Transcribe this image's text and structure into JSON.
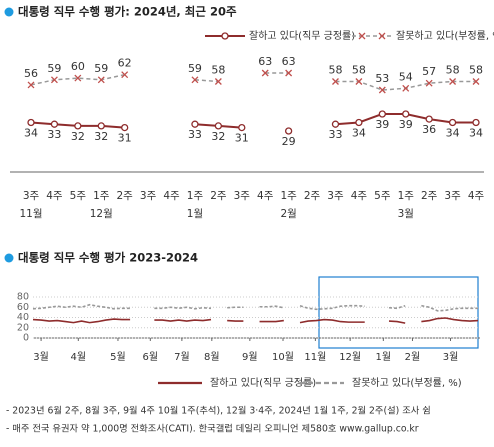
{
  "chart_data": [
    {
      "type": "line",
      "title": "대통령 직무 수행 평가: 2024년, 최근 20주",
      "categories": [
        "3주",
        "4주",
        "5주",
        "1주",
        "2주",
        "3주",
        "4주",
        "1주",
        "2주",
        "3주",
        "4주",
        "1주",
        "2주",
        "3주",
        "4주",
        "5주",
        "1주",
        "2주",
        "3주",
        "4주"
      ],
      "months": [
        "11월",
        null,
        null,
        "12월",
        null,
        null,
        null,
        "1월",
        null,
        null,
        null,
        "2월",
        null,
        null,
        null,
        null,
        "3월",
        null,
        null,
        null
      ],
      "series": [
        {
          "name": "잘하고 있다(직무 긍정률)",
          "color": "#8e2c2c",
          "values": [
            34,
            33,
            32,
            32,
            31,
            null,
            null,
            33,
            32,
            31,
            null,
            29,
            null,
            33,
            34,
            39,
            39,
            36,
            34,
            34
          ]
        },
        {
          "name": "잘못하고 있다(부정률, %)",
          "color": "#999999",
          "marker_color": "#c0504d",
          "values": [
            56,
            59,
            60,
            59,
            62,
            null,
            null,
            59,
            58,
            null,
            63,
            63,
            null,
            58,
            58,
            53,
            54,
            57,
            58,
            58
          ]
        }
      ]
    },
    {
      "type": "line",
      "title": "대통령 직무 수행 평가 2023-2024",
      "xlim": [
        0,
        55
      ],
      "xticks": [
        {
          "value": 1,
          "label": "3월"
        },
        {
          "value": 5.6,
          "label": "4월"
        },
        {
          "value": 10.5,
          "label": "5월"
        },
        {
          "value": 14.5,
          "label": "6월"
        },
        {
          "value": 18.4,
          "label": "7월"
        },
        {
          "value": 22.1,
          "label": "8월"
        },
        {
          "value": 26.8,
          "label": "9월"
        },
        {
          "value": 30.9,
          "label": "10월"
        },
        {
          "value": 34.9,
          "label": "11월"
        },
        {
          "value": 39.2,
          "label": "12월"
        },
        {
          "value": 43.3,
          "label": "1월"
        },
        {
          "value": 46.9,
          "label": "2월"
        },
        {
          "value": 51.6,
          "label": "3월"
        }
      ],
      "ylim": [
        0,
        80
      ],
      "yticks": [
        0,
        20,
        40,
        60,
        80
      ],
      "grid": true,
      "series": [
        {
          "name": "잘하고 있다(직무 긍정률)",
          "color": "#8e2c2c",
          "values": [
            36,
            35,
            33,
            34,
            32,
            30,
            33,
            30,
            32,
            35,
            37,
            36,
            36,
            null,
            null,
            35,
            35,
            33,
            35,
            33,
            35,
            34,
            36,
            null,
            34,
            33,
            33,
            null,
            32,
            32,
            32,
            34,
            null,
            30,
            33,
            34,
            36,
            35,
            32,
            31,
            31,
            31,
            null,
            null,
            33,
            32,
            29,
            null,
            32,
            34,
            38,
            39,
            36,
            34,
            33,
            34
          ]
        },
        {
          "name": "잘못하고 있다(부정률, %)",
          "color": "#999999",
          "values": [
            57,
            58,
            60,
            62,
            60,
            62,
            60,
            65,
            62,
            60,
            57,
            58,
            58,
            null,
            null,
            58,
            58,
            60,
            58,
            60,
            57,
            59,
            58,
            null,
            59,
            60,
            60,
            null,
            61,
            61,
            62,
            59,
            null,
            63,
            58,
            56,
            57,
            58,
            62,
            63,
            63,
            62,
            null,
            null,
            59,
            58,
            63,
            null,
            63,
            60,
            53,
            54,
            57,
            58,
            58,
            58
          ]
        }
      ]
    }
  ],
  "notes": [
    "- 2023년 6월 2주, 8월 3주, 9월 4주 10월 1주(추석), 12월 3·4주, 2024년 1월 1주, 2월 2주(설) 조사 쉼",
    "- 매주 전국 유권자 약 1,000명 전화조사(CATI). 한국갤럽 데일리 오피니언 제580호 www.gallup.co.kr"
  ]
}
